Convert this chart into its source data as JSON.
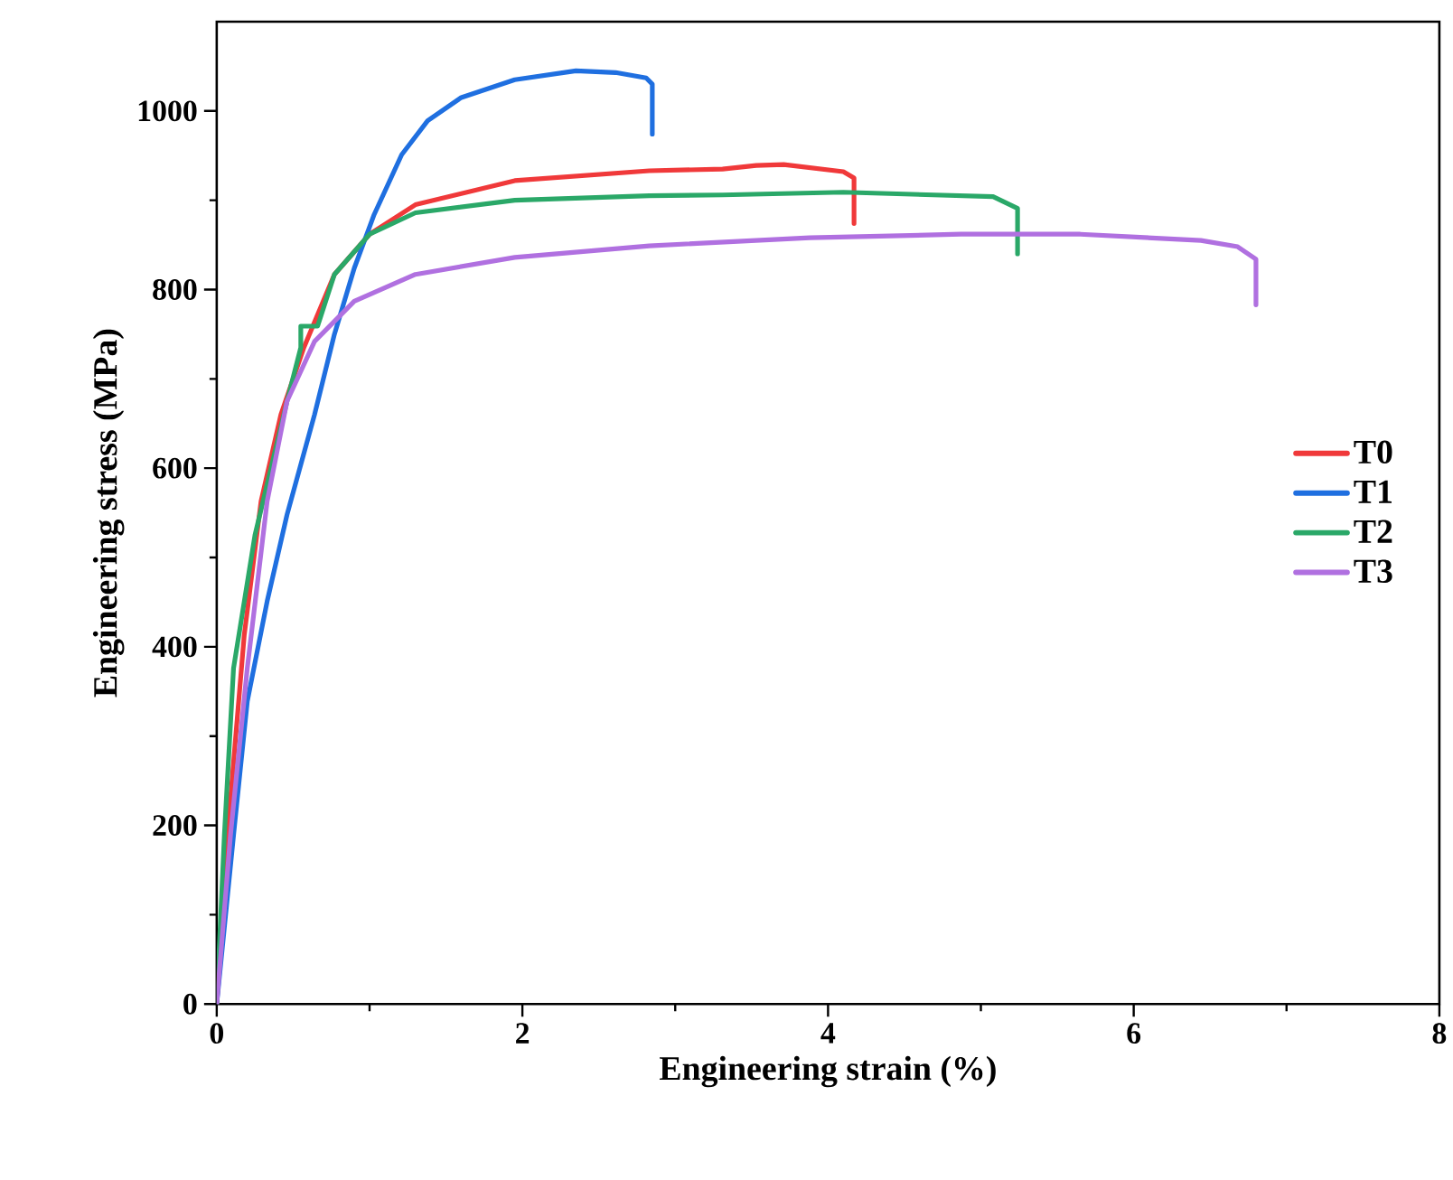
{
  "chart_data": {
    "type": "line",
    "xlabel": "Engineering strain (%)",
    "ylabel": "Engineering stress (MPa)",
    "xlim": [
      0,
      8
    ],
    "ylim": [
      0,
      1100
    ],
    "xticks": [
      0,
      2,
      4,
      6,
      8
    ],
    "yticks": [
      0,
      200,
      400,
      600,
      800,
      1000
    ],
    "grid": false,
    "legend": "right",
    "marker": "none",
    "line_style": "solid",
    "series": [
      {
        "name": "T0",
        "color": "#f0393a",
        "x": [
          0,
          0.07,
          0.18,
          0.29,
          0.42,
          0.57,
          0.77,
          1.0,
          1.3,
          1.95,
          2.83,
          3.31,
          3.53,
          3.71,
          4.1,
          4.17,
          4.17
        ],
        "values": [
          0,
          189,
          413,
          563,
          660,
          735,
          817,
          862,
          895,
          922,
          933,
          935,
          939,
          940,
          932,
          925,
          874
        ]
      },
      {
        "name": "T1",
        "color": "#1f6fe0",
        "x": [
          0,
          0.11,
          0.2,
          0.33,
          0.46,
          0.64,
          0.77,
          0.9,
          1.03,
          1.21,
          1.38,
          1.6,
          1.95,
          2.35,
          2.61,
          2.81,
          2.85,
          2.85
        ],
        "values": [
          0,
          189,
          339,
          451,
          548,
          660,
          750,
          824,
          884,
          951,
          989,
          1015,
          1035,
          1045,
          1043,
          1037,
          1030,
          974
        ]
      },
      {
        "name": "T2",
        "color": "#2aa868",
        "x": [
          0,
          0.05,
          0.11,
          0.25,
          0.46,
          0.55,
          0.55,
          0.66,
          0.77,
          1.0,
          1.3,
          1.95,
          2.83,
          3.31,
          4.1,
          5.08,
          5.24,
          5.24
        ],
        "values": [
          0,
          189,
          376,
          525,
          675,
          735,
          759,
          759,
          817,
          862,
          886,
          900,
          905,
          906,
          909,
          904,
          891,
          840
        ]
      },
      {
        "name": "T3",
        "color": "#b070e0",
        "x": [
          0,
          0.09,
          0.2,
          0.33,
          0.46,
          0.64,
          0.9,
          1.3,
          1.95,
          2.83,
          3.88,
          4.87,
          5.65,
          6.44,
          6.68,
          6.8,
          6.8
        ],
        "values": [
          0,
          189,
          376,
          563,
          675,
          742,
          787,
          817,
          836,
          849,
          858,
          862,
          862,
          855,
          848,
          834,
          783
        ]
      }
    ]
  }
}
